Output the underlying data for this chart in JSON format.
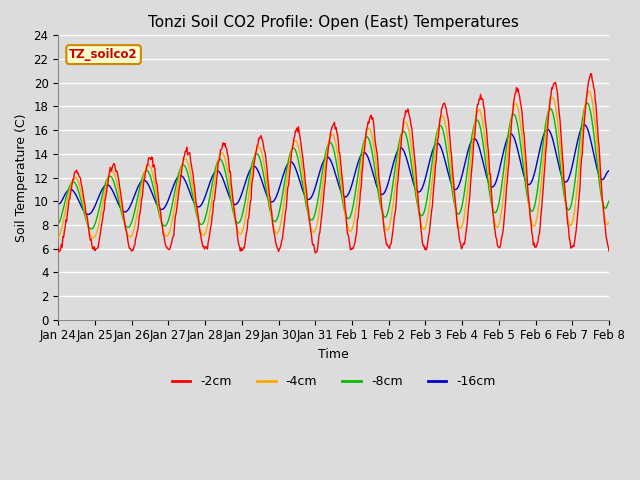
{
  "title": "Tonzi Soil CO2 Profile: Open (East) Temperatures",
  "xlabel": "Time",
  "ylabel": "Soil Temperature (C)",
  "ylim": [
    0,
    24
  ],
  "yticks": [
    0,
    2,
    4,
    6,
    8,
    10,
    12,
    14,
    16,
    18,
    20,
    22,
    24
  ],
  "background_color": "#dcdcdc",
  "plot_bg_color": "#dcdcdc",
  "grid_color": "#ffffff",
  "annotation_text": "TZ_soilco2",
  "annotation_bg": "#ffffcc",
  "annotation_border": "#cc8800",
  "annotation_text_color": "#cc0000",
  "legend_items": [
    "-2cm",
    "-4cm",
    "-8cm",
    "-16cm"
  ],
  "line_colors": [
    "#ff0000",
    "#ffaa00",
    "#00bb00",
    "#0000cc"
  ],
  "x_tick_labels": [
    "Jan 24",
    "Jan 25",
    "Jan 26",
    "Jan 27",
    "Jan 28",
    "Jan 29",
    "Jan 30",
    "Jan 31",
    "Feb 1",
    "Feb 2",
    "Feb 3",
    "Feb 4",
    "Feb 5",
    "Feb 6",
    "Feb 7",
    "Feb 8"
  ],
  "title_fontsize": 11,
  "label_fontsize": 9,
  "tick_fontsize": 8.5
}
